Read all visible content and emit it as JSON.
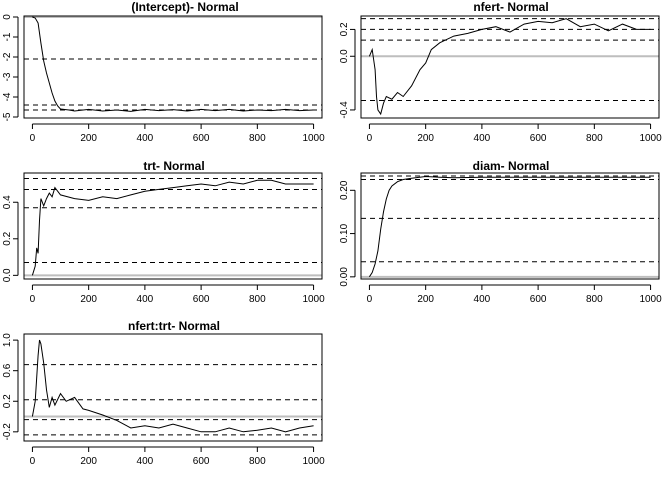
{
  "chart_data": [
    {
      "type": "line",
      "title": "(Intercept)- Normal",
      "xlim": [
        -30,
        1030
      ],
      "ylim": [
        -5.05,
        0.05
      ],
      "xticks": [
        0,
        200,
        400,
        600,
        800,
        1000
      ],
      "yticks": [
        -5,
        -4,
        -3,
        -2,
        -1,
        0
      ],
      "ytick_labels": [
        "-5",
        "-4",
        "-3",
        "-2",
        "-1",
        "0"
      ],
      "reference_lines": [
        {
          "y": 0,
          "style": "solid-gray"
        },
        {
          "y": -2.1,
          "style": "dashed"
        },
        {
          "y": -4.4,
          "style": "dashed"
        },
        {
          "y": -4.65,
          "style": "dashed"
        }
      ],
      "series": [
        {
          "x": [
            0,
            10,
            20,
            30,
            40,
            50,
            60,
            70,
            80,
            90,
            100,
            130,
            150,
            200,
            250,
            300,
            350,
            400,
            450,
            500,
            550,
            600,
            650,
            700,
            750,
            800,
            850,
            900,
            950,
            1000
          ],
          "y": [
            0,
            -0.05,
            -0.3,
            -1.3,
            -2.2,
            -2.8,
            -3.3,
            -3.8,
            -4.2,
            -4.45,
            -4.6,
            -4.65,
            -4.7,
            -4.62,
            -4.7,
            -4.65,
            -4.72,
            -4.62,
            -4.68,
            -4.63,
            -4.7,
            -4.62,
            -4.68,
            -4.62,
            -4.7,
            -4.65,
            -4.68,
            -4.62,
            -4.68,
            -4.65
          ]
        }
      ]
    },
    {
      "type": "line",
      "title": "nfert- Normal",
      "xlim": [
        -30,
        1030
      ],
      "ylim": [
        -0.46,
        0.3
      ],
      "xticks": [
        0,
        200,
        400,
        600,
        800,
        1000
      ],
      "yticks": [
        -0.4,
        0,
        0.2
      ],
      "ytick_labels": [
        "-0.4",
        "0.0",
        "0.2"
      ],
      "reference_lines": [
        {
          "y": 0,
          "style": "solid-gray"
        },
        {
          "y": 0.28,
          "style": "dashed"
        },
        {
          "y": 0.2,
          "style": "dashed"
        },
        {
          "y": 0.12,
          "style": "dashed"
        },
        {
          "y": -0.33,
          "style": "dashed"
        }
      ],
      "series": [
        {
          "x": [
            0,
            10,
            20,
            25,
            30,
            40,
            50,
            60,
            80,
            100,
            120,
            150,
            180,
            200,
            220,
            250,
            300,
            350,
            400,
            450,
            500,
            550,
            600,
            650,
            700,
            750,
            800,
            850,
            900,
            950,
            1000
          ],
          "y": [
            0,
            0.05,
            -0.1,
            -0.3,
            -0.4,
            -0.43,
            -0.35,
            -0.3,
            -0.32,
            -0.27,
            -0.3,
            -0.22,
            -0.1,
            -0.05,
            0.05,
            0.1,
            0.15,
            0.17,
            0.2,
            0.22,
            0.18,
            0.24,
            0.26,
            0.25,
            0.28,
            0.22,
            0.24,
            0.19,
            0.24,
            0.2,
            0.2
          ]
        }
      ]
    },
    {
      "type": "line",
      "title": "trt- Normal",
      "xlim": [
        -30,
        1030
      ],
      "ylim": [
        -0.02,
        0.56
      ],
      "xticks": [
        0,
        200,
        400,
        600,
        800,
        1000
      ],
      "yticks": [
        0,
        0.2,
        0.4
      ],
      "ytick_labels": [
        "0.0",
        "0.2",
        "0.4"
      ],
      "reference_lines": [
        {
          "y": 0,
          "style": "solid-gray"
        },
        {
          "y": 0.53,
          "style": "dashed"
        },
        {
          "y": 0.47,
          "style": "dashed"
        },
        {
          "y": 0.37,
          "style": "dashed"
        },
        {
          "y": 0.07,
          "style": "dashed"
        }
      ],
      "series": [
        {
          "x": [
            0,
            10,
            15,
            20,
            25,
            30,
            40,
            50,
            60,
            70,
            80,
            100,
            150,
            200,
            250,
            300,
            350,
            400,
            450,
            500,
            550,
            600,
            650,
            700,
            750,
            800,
            850,
            900,
            950,
            1000
          ],
          "y": [
            0,
            0.05,
            0.15,
            0.12,
            0.3,
            0.42,
            0.38,
            0.42,
            0.45,
            0.43,
            0.48,
            0.44,
            0.42,
            0.41,
            0.43,
            0.42,
            0.44,
            0.46,
            0.47,
            0.48,
            0.49,
            0.5,
            0.49,
            0.51,
            0.5,
            0.52,
            0.52,
            0.5,
            0.5,
            0.5
          ]
        }
      ]
    },
    {
      "type": "line",
      "title": "diam- Normal",
      "xlim": [
        -30,
        1030
      ],
      "ylim": [
        -0.005,
        0.24
      ],
      "xticks": [
        0,
        200,
        400,
        600,
        800,
        1000
      ],
      "yticks": [
        0,
        0.1,
        0.2
      ],
      "ytick_labels": [
        "0.00",
        "0.10",
        "0.20"
      ],
      "reference_lines": [
        {
          "y": 0,
          "style": "solid-gray"
        },
        {
          "y": 0.233,
          "style": "dashed"
        },
        {
          "y": 0.225,
          "style": "dashed"
        },
        {
          "y": 0.135,
          "style": "dashed"
        },
        {
          "y": 0.035,
          "style": "dashed"
        }
      ],
      "series": [
        {
          "x": [
            0,
            10,
            20,
            30,
            40,
            50,
            60,
            70,
            80,
            100,
            120,
            150,
            200,
            250,
            300,
            400,
            500,
            600,
            700,
            800,
            900,
            1000
          ],
          "y": [
            0,
            0.01,
            0.03,
            0.06,
            0.11,
            0.15,
            0.18,
            0.2,
            0.21,
            0.22,
            0.225,
            0.228,
            0.232,
            0.23,
            0.229,
            0.23,
            0.23,
            0.23,
            0.23,
            0.23,
            0.23,
            0.23
          ]
        }
      ]
    },
    {
      "type": "line",
      "title": "nfert:trt- Normal",
      "xlim": [
        -30,
        1030
      ],
      "ylim": [
        -0.32,
        1.08
      ],
      "xticks": [
        0,
        200,
        400,
        600,
        800,
        1000
      ],
      "yticks": [
        -0.2,
        0.2,
        0.6,
        1.0
      ],
      "ytick_labels": [
        "-0.2",
        "0.2",
        "0.6",
        "1.0"
      ],
      "reference_lines": [
        {
          "y": 0,
          "style": "solid-gray"
        },
        {
          "y": 0.68,
          "style": "dashed"
        },
        {
          "y": 0.22,
          "style": "dashed"
        },
        {
          "y": -0.04,
          "style": "dashed"
        },
        {
          "y": -0.24,
          "style": "dashed"
        }
      ],
      "series": [
        {
          "x": [
            0,
            10,
            20,
            25,
            30,
            40,
            50,
            60,
            70,
            80,
            100,
            120,
            150,
            180,
            200,
            250,
            300,
            350,
            400,
            450,
            500,
            550,
            600,
            650,
            700,
            750,
            800,
            850,
            900,
            950,
            1000
          ],
          "y": [
            0,
            0.2,
            0.8,
            1.0,
            0.95,
            0.7,
            0.35,
            0.12,
            0.25,
            0.15,
            0.3,
            0.2,
            0.25,
            0.1,
            0.08,
            0.02,
            -0.05,
            -0.15,
            -0.12,
            -0.15,
            -0.1,
            -0.15,
            -0.2,
            -0.2,
            -0.15,
            -0.2,
            -0.18,
            -0.15,
            -0.2,
            -0.15,
            -0.12
          ]
        }
      ]
    }
  ]
}
